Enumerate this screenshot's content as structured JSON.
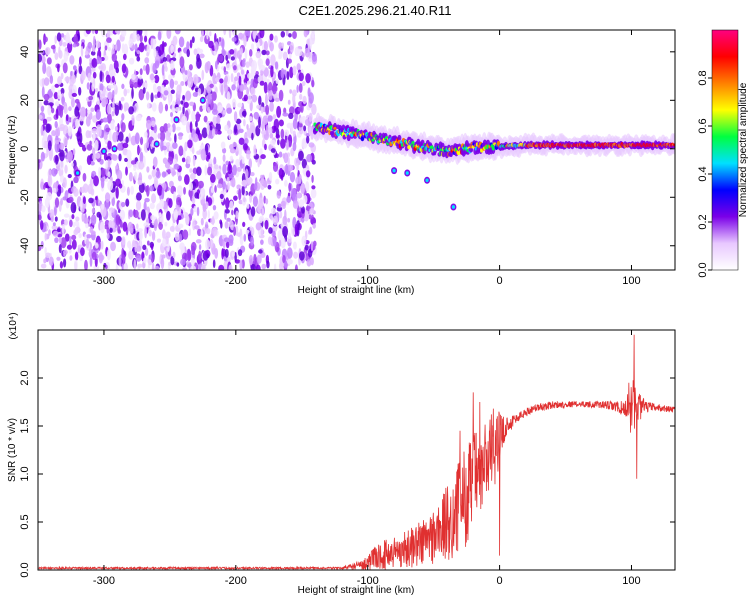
{
  "title": "C2E1.2025.296.21.40.R11",
  "chart_data": [
    {
      "type": "heatmap",
      "xlabel": "Height of straight line (km)",
      "ylabel": "Frequency (Hz)",
      "xlim": [
        -350,
        133
      ],
      "ylim": [
        -50,
        49
      ],
      "xticks": [
        -300,
        -200,
        -100,
        0,
        100
      ],
      "yticks": [
        -40,
        -20,
        0,
        20,
        40
      ],
      "colorbar": {
        "label": "Normalized spectral amplitude",
        "range": [
          0,
          1
        ],
        "ticks": [
          "0.0",
          "0.2",
          "0.4",
          "0.6",
          "0.8"
        ],
        "colors": [
          "#ffffff",
          "#e8c8ff",
          "#7a00e8",
          "#0000ff",
          "#00e0ff",
          "#00ff40",
          "#ffff00",
          "#ff8000",
          "#ff0000",
          "#ff0080"
        ]
      },
      "ridge": {
        "description_points": [
          [
            -140,
            9
          ],
          [
            -120,
            7
          ],
          [
            -100,
            5
          ],
          [
            -80,
            3
          ],
          [
            -60,
            1
          ],
          [
            -40,
            -1
          ],
          [
            -20,
            0.5
          ],
          [
            0,
            1
          ],
          [
            20,
            1.5
          ],
          [
            60,
            1.5
          ],
          [
            100,
            1.5
          ],
          [
            133,
            1.5
          ]
        ]
      },
      "noise_region_x": [
        -350,
        -140
      ]
    },
    {
      "type": "line",
      "xlabel": "Height of straight line (km)",
      "ylabel": "SNR (10 * v/v)",
      "y_multiplier_label": "(x10⁴)",
      "xlim": [
        -350,
        133
      ],
      "ylim": [
        0,
        2.5
      ],
      "xticks": [
        -300,
        -200,
        -100,
        0,
        100
      ],
      "yticks": [
        0.0,
        0.5,
        1.0,
        1.5,
        2.0
      ],
      "series": [
        {
          "name": "SNR",
          "color": "#e03030",
          "envelope": {
            "x": [
              -350,
              -120,
              -105,
              -90,
              -70,
              -50,
              -35,
              -25,
              -15,
              -5,
              5,
              15,
              25,
              40,
              60,
              80,
              95,
              100,
              105,
              110,
              120,
              133
            ],
            "base": [
              0.02,
              0.02,
              0.05,
              0.15,
              0.22,
              0.35,
              0.55,
              0.8,
              1.0,
              1.25,
              1.5,
              1.6,
              1.68,
              1.72,
              1.73,
              1.72,
              1.68,
              1.7,
              1.72,
              1.7,
              1.69,
              1.67
            ],
            "amp": [
              0.01,
              0.01,
              0.05,
              0.15,
              0.2,
              0.3,
              0.45,
              0.55,
              0.5,
              0.45,
              0.1,
              0.05,
              0.04,
              0.04,
              0.03,
              0.04,
              0.08,
              0.3,
              0.2,
              0.06,
              0.04,
              0.03
            ]
          },
          "spikes": [
            [
              -20,
              1.85
            ],
            [
              -15,
              1.75
            ],
            [
              -30,
              1.45
            ],
            [
              0,
              0.15
            ],
            [
              102,
              2.45
            ],
            [
              104,
              0.95
            ],
            [
              98,
              1.95
            ]
          ]
        }
      ]
    }
  ]
}
